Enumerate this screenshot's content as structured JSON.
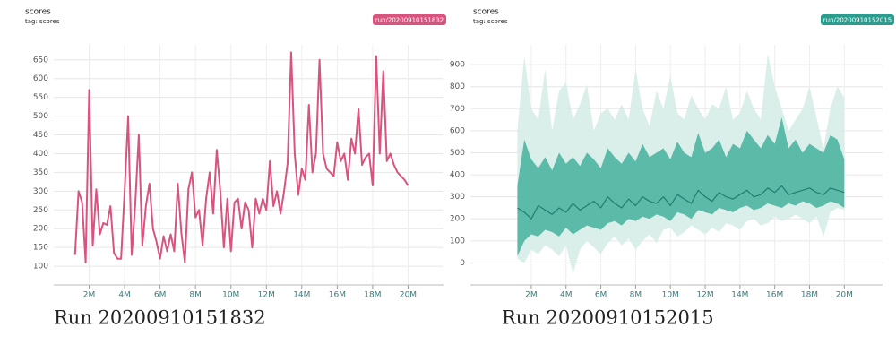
{
  "chart_data": [
    {
      "type": "line",
      "title": "scores",
      "subtitle": "tag: scores",
      "legend": "run/20200910151832",
      "legend_color": "#d9537f",
      "caption": "Run 20200910151832",
      "grid": true,
      "xlim": [
        0,
        22000000
      ],
      "ylim": [
        50,
        690
      ],
      "xticks": [
        {
          "value": 2000000,
          "label": "2M"
        },
        {
          "value": 4000000,
          "label": "4M"
        },
        {
          "value": 6000000,
          "label": "6M"
        },
        {
          "value": 8000000,
          "label": "8M"
        },
        {
          "value": 10000000,
          "label": "10M"
        },
        {
          "value": 12000000,
          "label": "12M"
        },
        {
          "value": 14000000,
          "label": "14M"
        },
        {
          "value": 16000000,
          "label": "16M"
        },
        {
          "value": 18000000,
          "label": "18M"
        },
        {
          "value": 20000000,
          "label": "20M"
        }
      ],
      "yticks": [
        100,
        150,
        200,
        250,
        300,
        350,
        400,
        450,
        500,
        550,
        600,
        650
      ],
      "x": [
        1200000,
        1400000,
        1600000,
        1800000,
        2000000,
        2200000,
        2400000,
        2600000,
        2800000,
        3000000,
        3200000,
        3400000,
        3600000,
        3800000,
        4000000,
        4200000,
        4400000,
        4600000,
        4800000,
        5000000,
        5200000,
        5400000,
        5600000,
        5800000,
        6000000,
        6200000,
        6400000,
        6600000,
        6800000,
        7000000,
        7200000,
        7400000,
        7600000,
        7800000,
        8000000,
        8200000,
        8400000,
        8600000,
        8800000,
        9000000,
        9200000,
        9400000,
        9600000,
        9800000,
        10000000,
        10200000,
        10400000,
        10600000,
        10800000,
        11000000,
        11200000,
        11400000,
        11600000,
        11800000,
        12000000,
        12200000,
        12400000,
        12600000,
        12800000,
        13000000,
        13200000,
        13400000,
        13600000,
        13800000,
        14000000,
        14200000,
        14400000,
        14600000,
        14800000,
        15000000,
        15200000,
        15400000,
        15600000,
        15800000,
        16000000,
        16200000,
        16400000,
        16600000,
        16800000,
        17000000,
        17200000,
        17400000,
        17600000,
        17800000,
        18000000,
        18200000,
        18400000,
        18600000,
        18800000,
        19000000,
        19200000,
        19400000,
        19600000,
        19800000,
        20000000
      ],
      "series": [
        {
          "color": "#d9537f",
          "values": [
            130,
            300,
            270,
            110,
            570,
            155,
            305,
            185,
            215,
            210,
            260,
            135,
            120,
            120,
            300,
            500,
            130,
            265,
            450,
            155,
            260,
            320,
            200,
            165,
            120,
            180,
            140,
            185,
            140,
            320,
            190,
            110,
            305,
            350,
            230,
            250,
            155,
            280,
            350,
            240,
            410,
            300,
            150,
            280,
            140,
            270,
            280,
            200,
            270,
            250,
            150,
            280,
            240,
            280,
            250,
            380,
            260,
            300,
            240,
            300,
            375,
            670,
            400,
            290,
            360,
            330,
            530,
            350,
            400,
            650,
            400,
            360,
            350,
            340,
            430,
            380,
            400,
            330,
            440,
            400,
            520,
            370,
            390,
            400,
            315,
            660,
            400,
            620,
            380,
            400,
            370,
            350,
            340,
            330,
            315
          ]
        }
      ]
    },
    {
      "type": "area",
      "title": "scores",
      "subtitle": "tag: scores",
      "legend": "run/20200910152015",
      "legend_color": "#2a9d8f",
      "caption": "Run 20200910152015",
      "grid": true,
      "xlim": [
        -1500000,
        22200000
      ],
      "ylim": [
        -100,
        990
      ],
      "xticks": [
        {
          "value": 2000000,
          "label": "2M"
        },
        {
          "value": 4000000,
          "label": "4M"
        },
        {
          "value": 6000000,
          "label": "6M"
        },
        {
          "value": 8000000,
          "label": "8M"
        },
        {
          "value": 10000000,
          "label": "10M"
        },
        {
          "value": 12000000,
          "label": "12M"
        },
        {
          "value": 14000000,
          "label": "14M"
        },
        {
          "value": 16000000,
          "label": "16M"
        },
        {
          "value": 18000000,
          "label": "18M"
        },
        {
          "value": 20000000,
          "label": "20M"
        }
      ],
      "yticks": [
        0,
        100,
        200,
        300,
        400,
        500,
        600,
        700,
        800,
        900
      ],
      "x": [
        1200000,
        1600000,
        2000000,
        2400000,
        2800000,
        3200000,
        3600000,
        4000000,
        4400000,
        4800000,
        5200000,
        5600000,
        6000000,
        6400000,
        6800000,
        7200000,
        7600000,
        8000000,
        8400000,
        8800000,
        9200000,
        9600000,
        10000000,
        10400000,
        10800000,
        11200000,
        11600000,
        12000000,
        12400000,
        12800000,
        13200000,
        13600000,
        14000000,
        14400000,
        14800000,
        15200000,
        15600000,
        16000000,
        16400000,
        16800000,
        17200000,
        17600000,
        18000000,
        18400000,
        18800000,
        19200000,
        19600000,
        20000000
      ],
      "bands": [
        {
          "color": "#d6ece8",
          "high": [
            600,
            940,
            700,
            650,
            880,
            600,
            780,
            820,
            650,
            720,
            810,
            600,
            680,
            700,
            650,
            720,
            650,
            880,
            700,
            620,
            780,
            700,
            850,
            680,
            650,
            760,
            700,
            650,
            720,
            700,
            800,
            650,
            680,
            780,
            700,
            650,
            950,
            800,
            700,
            600,
            650,
            700,
            800,
            660,
            520,
            700,
            800,
            750
          ],
          "low": [
            20,
            0,
            60,
            40,
            80,
            60,
            30,
            80,
            -50,
            60,
            100,
            70,
            40,
            90,
            120,
            80,
            110,
            60,
            100,
            130,
            90,
            150,
            160,
            120,
            140,
            170,
            150,
            130,
            160,
            140,
            180,
            170,
            150,
            190,
            200,
            170,
            180,
            210,
            190,
            200,
            220,
            200,
            180,
            210,
            120,
            230,
            250,
            240
          ]
        },
        {
          "color": "#45b09e",
          "high": [
            350,
            560,
            470,
            430,
            480,
            420,
            500,
            450,
            480,
            440,
            500,
            470,
            430,
            520,
            480,
            450,
            500,
            460,
            540,
            480,
            500,
            520,
            470,
            550,
            500,
            480,
            590,
            500,
            520,
            560,
            480,
            540,
            520,
            600,
            560,
            520,
            580,
            540,
            660,
            520,
            560,
            500,
            540,
            520,
            500,
            580,
            560,
            470
          ],
          "low": [
            30,
            100,
            130,
            120,
            150,
            140,
            120,
            160,
            130,
            150,
            170,
            160,
            150,
            180,
            190,
            170,
            200,
            190,
            210,
            200,
            220,
            210,
            190,
            230,
            220,
            200,
            240,
            230,
            220,
            250,
            240,
            230,
            250,
            260,
            240,
            250,
            270,
            260,
            250,
            270,
            260,
            280,
            270,
            250,
            260,
            280,
            270,
            250
          ]
        }
      ],
      "series": [
        {
          "color": "#1f7f70",
          "values": [
            250,
            230,
            200,
            260,
            240,
            220,
            250,
            230,
            270,
            240,
            260,
            280,
            250,
            300,
            270,
            250,
            290,
            260,
            300,
            280,
            270,
            300,
            260,
            310,
            290,
            270,
            330,
            300,
            280,
            320,
            300,
            290,
            310,
            330,
            300,
            310,
            340,
            320,
            350,
            310,
            320,
            330,
            340,
            320,
            310,
            340,
            330,
            320
          ]
        }
      ]
    }
  ]
}
